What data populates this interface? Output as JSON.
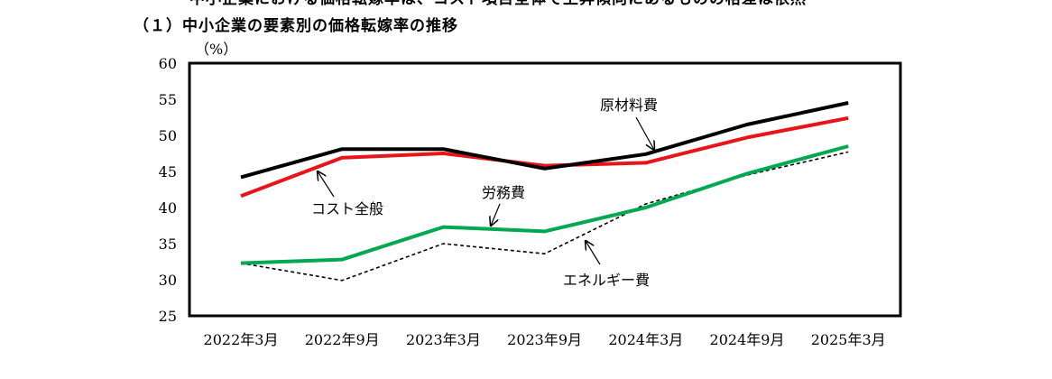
{
  "header": {
    "clipped_text": "中小企業における価格転嫁率は、コスト項目全体で上昇傾向にあるものの格差は依然",
    "title": "（１）中小企業の要素別の価格転嫁率の推移"
  },
  "chart_data": {
    "type": "line",
    "title": "（１）中小企業の要素別の価格転嫁率の推移",
    "ylabel": "（%）",
    "xlabel": "",
    "ylim": [
      25,
      60
    ],
    "yticks": [
      25,
      30,
      35,
      40,
      45,
      50,
      55,
      60
    ],
    "grid": false,
    "categories": [
      "2022年3月",
      "2022年9月",
      "2023年3月",
      "2023年9月",
      "2024年3月",
      "2024年9月",
      "2025年3月"
    ],
    "series": [
      {
        "name": "原材料費",
        "color": "#000000",
        "dash": "solid",
        "values": [
          44.2,
          48.1,
          48.1,
          45.4,
          47.4,
          51.5,
          54.5
        ]
      },
      {
        "name": "コスト全般",
        "color": "#e8141a",
        "dash": "solid",
        "values": [
          41.6,
          46.9,
          47.5,
          45.8,
          46.2,
          49.7,
          52.4
        ]
      },
      {
        "name": "労務費",
        "color": "#00a850",
        "dash": "solid",
        "values": [
          32.3,
          32.8,
          37.3,
          36.7,
          40.0,
          44.7,
          48.5
        ]
      },
      {
        "name": "エネルギー費",
        "color": "#000000",
        "dash": "dashed",
        "values": [
          32.3,
          29.9,
          35.0,
          33.6,
          40.5,
          44.5,
          47.7
        ]
      }
    ]
  }
}
